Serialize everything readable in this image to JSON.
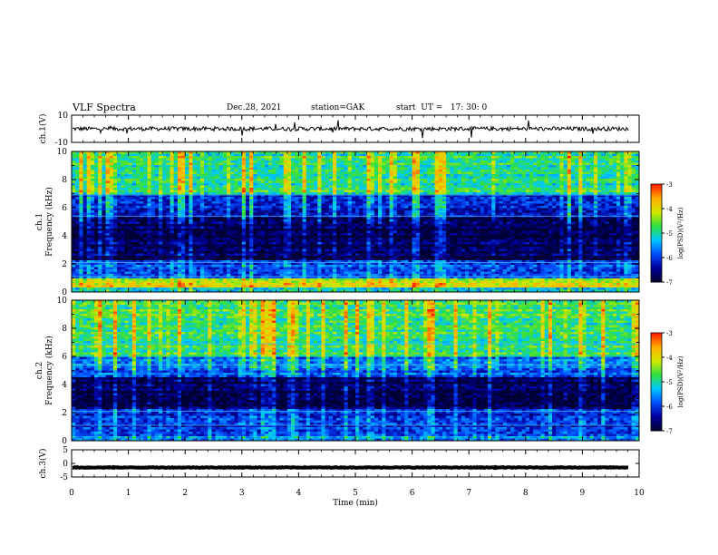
{
  "header": {
    "title": "VLF Spectra",
    "date": "Dec.28, 2021",
    "station": "station=GAK",
    "start": "start  UT =   17: 30: 0"
  },
  "colors": {
    "spectrogram_colormap": [
      "#000033",
      "#0000a0",
      "#0050ff",
      "#00c8ff",
      "#30e040",
      "#d0e800",
      "#ffb000",
      "#ff2000",
      "#ffffff"
    ],
    "trace": "#000000"
  },
  "chart_data": [
    {
      "type": "line",
      "name": "ch1-waveform",
      "ylabel": "ch.1(V)",
      "ylim": [
        -10,
        10
      ],
      "yticks": [
        "10",
        "-10"
      ],
      "xlim": [
        0,
        10
      ],
      "values_note_baseline": 0
    },
    {
      "type": "heatmap",
      "name": "ch1-spectrogram",
      "ylabel_line1": "ch.1",
      "ylabel_line2": "Frequency (kHz)",
      "ylim": [
        0,
        10
      ],
      "yticks": [
        "0",
        "2",
        "4",
        "6",
        "8",
        "10"
      ],
      "xlim": [
        0,
        10
      ],
      "colorbar": {
        "label": "log(PSD)(V²/Hz)",
        "ticks": [
          "-3",
          "-4",
          "-5",
          "-6",
          "-7"
        ],
        "range": [
          -7,
          -3
        ]
      },
      "bands_kHz": [
        {
          "from": 0,
          "to": 0.4,
          "level": -5.2
        },
        {
          "from": 0.4,
          "to": 1.0,
          "level": -4.2
        },
        {
          "from": 1.0,
          "to": 2.2,
          "level": -6.0
        },
        {
          "from": 2.2,
          "to": 5.3,
          "level": -6.9
        },
        {
          "from": 5.3,
          "to": 7.0,
          "level": -6.2
        },
        {
          "from": 7.0,
          "to": 10.0,
          "level": -4.9
        }
      ]
    },
    {
      "type": "heatmap",
      "name": "ch2-spectrogram",
      "ylabel_line1": "ch.2",
      "ylabel_line2": "Frequency (kHz)",
      "ylim": [
        0,
        10
      ],
      "yticks": [
        "0",
        "2",
        "4",
        "6",
        "8",
        "10"
      ],
      "xlim": [
        0,
        10
      ],
      "colorbar": {
        "label": "log(PSD)(V²/Hz)",
        "ticks": [
          "-3",
          "-4",
          "-5",
          "-6",
          "-7"
        ],
        "range": [
          -7,
          -3
        ]
      },
      "bands_kHz": [
        {
          "from": 0,
          "to": 0.4,
          "level": -5.6
        },
        {
          "from": 0.4,
          "to": 2.2,
          "level": -6.2
        },
        {
          "from": 2.2,
          "to": 4.5,
          "level": -6.9
        },
        {
          "from": 4.5,
          "to": 6.0,
          "level": -5.8
        },
        {
          "from": 6.0,
          "to": 10.0,
          "level": -4.8
        }
      ]
    },
    {
      "type": "line",
      "name": "ch3-waveform",
      "ylabel": "ch.3(V)",
      "ylim": [
        -5,
        5
      ],
      "yticks": [
        "5",
        "0",
        "-5"
      ],
      "xlim": [
        0,
        10
      ],
      "values_note_baseline": -1.5,
      "xlabel": "Time (min)",
      "xticks": [
        "0",
        "1",
        "2",
        "3",
        "4",
        "5",
        "6",
        "7",
        "8",
        "9",
        "10"
      ]
    }
  ]
}
